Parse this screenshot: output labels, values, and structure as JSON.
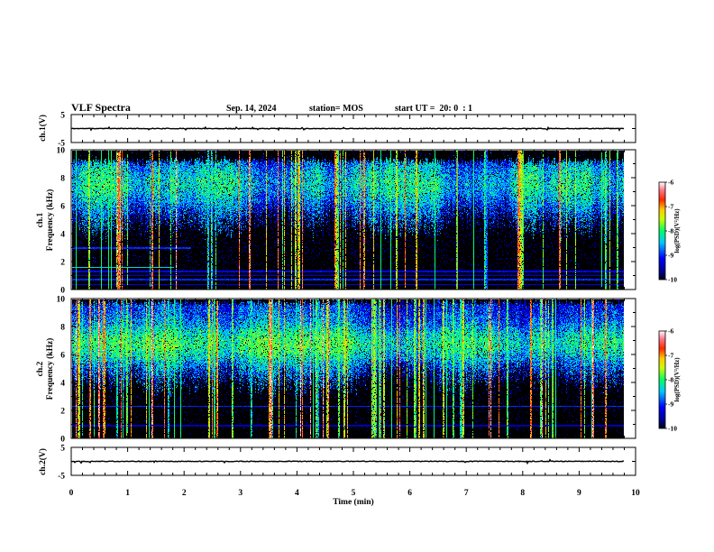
{
  "header": {
    "title": "VLF Spectra",
    "date": "Sep. 14, 2024",
    "station": "station= MOS",
    "start": "start UT =  20: 0  : 1"
  },
  "x_axis": {
    "label": "Time (min)",
    "ticks": [
      0,
      1,
      2,
      3,
      4,
      5,
      6,
      7,
      8,
      9,
      10
    ],
    "xlim": [
      0,
      10
    ],
    "data_extent": [
      0,
      9.8
    ]
  },
  "colorbar": {
    "label": "log(PSD)(V²/Hz)",
    "range": [
      -10,
      -6
    ],
    "ticks": [
      -6,
      -7,
      -8,
      -9,
      -10
    ],
    "colors": [
      {
        "level": -10.0,
        "color": "#000014"
      },
      {
        "level": -9.68,
        "color": "#00008c"
      },
      {
        "level": -9.12,
        "color": "#0000ff"
      },
      {
        "level": -8.48,
        "color": "#00c8ff"
      },
      {
        "level": -8.0,
        "color": "#00ff64"
      },
      {
        "level": -7.52,
        "color": "#c8ff00"
      },
      {
        "level": -7.12,
        "color": "#ffc800"
      },
      {
        "level": -6.72,
        "color": "#ff2800"
      },
      {
        "level": -6.32,
        "color": "#ff788c"
      },
      {
        "level": -6.0,
        "color": "#ffffff"
      }
    ]
  },
  "chart_data": [
    {
      "type": "line",
      "panel": "ch1-voltage",
      "ylabel": "ch.1(V)",
      "ylim": [
        -5,
        5
      ],
      "yticks": [
        5,
        -5
      ],
      "trace_level": 0,
      "trace_color": "#000000"
    },
    {
      "type": "heatmap",
      "panel": "ch1-spectrogram",
      "ylabel_channel": "ch.1",
      "ylabel": "Frequency (kHz)",
      "ylim": [
        0,
        10
      ],
      "yticks": [
        0,
        2,
        4,
        6,
        8,
        10
      ],
      "zlim": [
        -10,
        -6
      ]
    },
    {
      "type": "heatmap",
      "panel": "ch2-spectrogram",
      "ylabel_channel": "ch.2",
      "ylabel": "Frequency (kHz)",
      "ylim": [
        0,
        10
      ],
      "yticks": [
        0,
        2,
        4,
        6,
        8,
        10
      ],
      "zlim": [
        -10,
        -6
      ]
    },
    {
      "type": "line",
      "panel": "ch2-voltage",
      "ylabel": "ch.2(V)",
      "ylim": [
        -5,
        5
      ],
      "yticks": [
        5,
        -5
      ],
      "trace_level": 0,
      "trace_color": "#000000"
    }
  ]
}
